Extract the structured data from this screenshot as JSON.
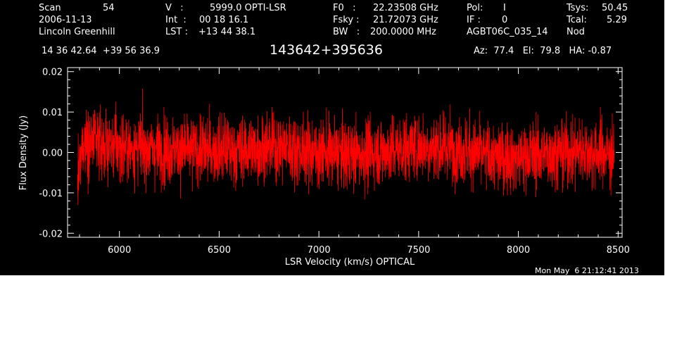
{
  "header": {
    "scan_label": "Scan",
    "scan_value": "54",
    "date": "2006-11-13",
    "observer": "Lincoln Greenhill",
    "v_label": "V   :",
    "v_value": "5999.0 OPTI-LSR",
    "int_label": "Int  :",
    "int_value": "00 18 16.1",
    "lst_label": "LST :",
    "lst_value": "+13 44 38.1",
    "f0_label": "F0   :",
    "f0_value": "22.23508 GHz",
    "fsky_label": "Fsky :",
    "fsky_value": "21.72073 GHz",
    "bw_label": "BW   :",
    "bw_value": "200.0000 MHz",
    "pol_label": "Pol:",
    "pol_value": "I",
    "if_label": "IF :",
    "if_value": "0",
    "project": "AGBT06C_035_14",
    "tsys_label": "Tsys:",
    "tsys_value": "50.45",
    "tcal_label": "Tcal:",
    "tcal_value": "5.29",
    "mode": "Nod"
  },
  "coords": "14 36 42.64  +39 56 36.9",
  "source": "143642+395636",
  "pointing": "Az:  77.4   El:  79.8   HA: -0.87",
  "timestamp": "Mon May  6 21:12:41 2013",
  "chart_data": {
    "type": "line",
    "xlabel": "LSR Velocity (km/s) OPTICAL",
    "ylabel": "Flux Density (Jy)",
    "xlim": [
      5740,
      8520
    ],
    "ylim": [
      -0.021,
      0.021
    ],
    "xticks": [
      6000,
      6500,
      7000,
      7500,
      8000,
      8500
    ],
    "xtick_labels": [
      "6000",
      "6500",
      "7000",
      "7500",
      "8000",
      "8500"
    ],
    "yticks": [
      -0.02,
      -0.01,
      0.0,
      0.01,
      0.02
    ],
    "ytick_labels": [
      "-0.02",
      "-0.01",
      "0.00",
      "0.01",
      "0.02"
    ],
    "x_start": 5790,
    "x_end": 8480,
    "series": [
      {
        "color": "#ff0000",
        "baseline": [
          {
            "x": 5790,
            "y": -0.009
          },
          {
            "x": 5800,
            "y": -0.004
          },
          {
            "x": 5820,
            "y": 0.003
          },
          {
            "x": 5900,
            "y": 0.002
          },
          {
            "x": 6100,
            "y": 0.001
          },
          {
            "x": 6300,
            "y": 0.0005
          },
          {
            "x": 6600,
            "y": 0.0005
          },
          {
            "x": 6800,
            "y": 0.0015
          },
          {
            "x": 7000,
            "y": 0.0
          },
          {
            "x": 7200,
            "y": -0.0005
          },
          {
            "x": 7500,
            "y": 0.0015
          },
          {
            "x": 7700,
            "y": 0.001
          },
          {
            "x": 7900,
            "y": -0.0015
          },
          {
            "x": 8100,
            "y": -0.0005
          },
          {
            "x": 8300,
            "y": 0.0005
          },
          {
            "x": 8480,
            "y": -0.0005
          }
        ],
        "noise_rms": 0.0042
      }
    ]
  }
}
